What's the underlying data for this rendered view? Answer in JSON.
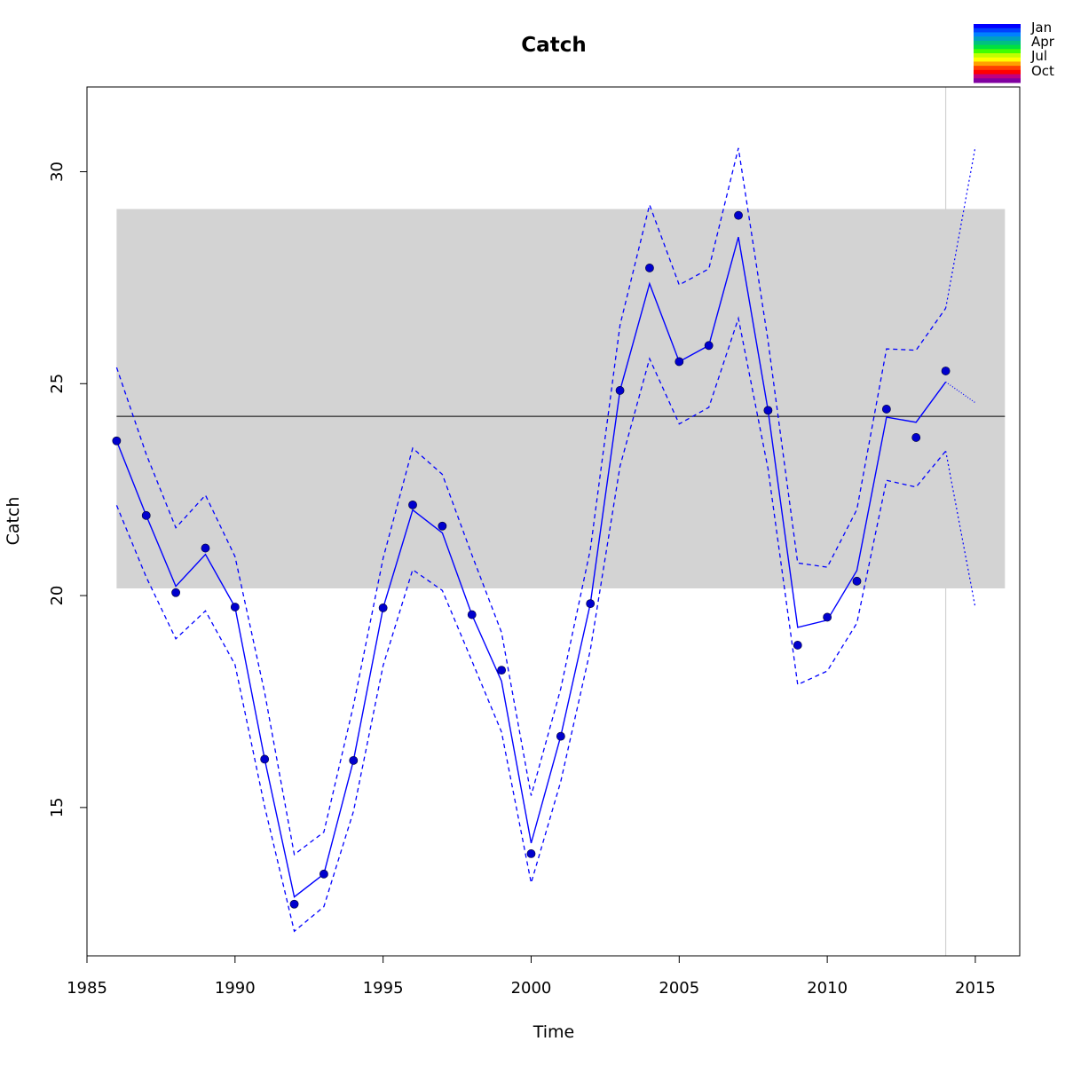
{
  "chart_data": {
    "type": "line",
    "title": "Catch",
    "xlabel": "Time",
    "ylabel": "Catch",
    "xlim": [
      1985,
      2016.5
    ],
    "ylim": [
      11.5,
      32
    ],
    "x_ticks": [
      1985,
      1990,
      1995,
      2000,
      2005,
      2010,
      2015
    ],
    "y_ticks": [
      15,
      20,
      25,
      30
    ],
    "x_tick_labels": [
      "1985",
      "1990",
      "1995",
      "2000",
      "2005",
      "2010",
      "2015"
    ],
    "y_tick_labels": [
      "15",
      "20",
      "25",
      "30"
    ],
    "grid": false,
    "mean_line": 24.23,
    "band": {
      "x_range": [
        1986,
        2016
      ],
      "y_range": [
        20.17,
        29.12
      ],
      "color": "#d3d3d3"
    },
    "vertical_marker_x": 2014,
    "observed": {
      "x": [
        1986,
        1987,
        1988,
        1989,
        1990,
        1991,
        1992,
        1993,
        1994,
        1995,
        1996,
        1997,
        1998,
        1999,
        2000,
        2001,
        2002,
        2003,
        2004,
        2005,
        2006,
        2007,
        2008,
        2009,
        2010,
        2011,
        2012,
        2013,
        2014
      ],
      "y": [
        23.65,
        21.89,
        20.07,
        21.12,
        19.73,
        16.14,
        12.72,
        13.43,
        16.11,
        19.71,
        22.14,
        21.64,
        19.55,
        18.24,
        13.91,
        16.68,
        19.81,
        24.84,
        27.73,
        25.52,
        25.9,
        28.97,
        24.37,
        18.83,
        19.49,
        20.34,
        24.4,
        23.73,
        25.3
      ]
    },
    "fitted": {
      "x": [
        1986,
        1987,
        1988,
        1989,
        1990,
        1991,
        1992,
        1993,
        1994,
        1995,
        1996,
        1997,
        1998,
        1999,
        2000,
        2001,
        2002,
        2003,
        2004,
        2005,
        2006,
        2007,
        2008,
        2009,
        2010,
        2011,
        2012,
        2013,
        2014
      ],
      "y": [
        23.65,
        21.89,
        20.22,
        20.97,
        19.73,
        16.14,
        12.89,
        13.43,
        16.11,
        19.71,
        22.02,
        21.48,
        19.55,
        17.98,
        14.16,
        16.68,
        19.81,
        24.84,
        27.36,
        25.52,
        25.9,
        28.46,
        24.37,
        19.25,
        19.42,
        20.59,
        24.21,
        24.09,
        25.04
      ]
    },
    "upper": {
      "x": [
        1986,
        1987,
        1988,
        1989,
        1990,
        1991,
        1992,
        1993,
        1994,
        1995,
        1996,
        1997,
        1998,
        1999,
        2000,
        2001,
        2002,
        2003,
        2004,
        2005,
        2006,
        2007,
        2008,
        2009,
        2010,
        2011,
        2012,
        2013,
        2014
      ],
      "y": [
        25.38,
        23.34,
        21.6,
        22.37,
        20.92,
        17.71,
        13.89,
        14.42,
        17.41,
        20.88,
        23.48,
        22.86,
        20.96,
        19.13,
        15.28,
        17.8,
        21.09,
        26.38,
        29.22,
        27.33,
        27.71,
        30.56,
        26.01,
        20.77,
        20.67,
        22.03,
        25.82,
        25.79,
        26.78
      ]
    },
    "lower": {
      "x": [
        1986,
        1987,
        1988,
        1989,
        1990,
        1991,
        1992,
        1993,
        1994,
        1995,
        1996,
        1997,
        1998,
        1999,
        2000,
        2001,
        2002,
        2003,
        2004,
        2005,
        2006,
        2007,
        2008,
        2009,
        2010,
        2011,
        2012,
        2013,
        2014
      ],
      "y": [
        22.13,
        20.44,
        18.98,
        19.64,
        18.37,
        15.02,
        12.08,
        12.66,
        14.91,
        18.35,
        20.61,
        20.12,
        18.46,
        16.78,
        13.22,
        15.61,
        18.72,
        23.05,
        25.59,
        24.05,
        24.44,
        26.54,
        22.99,
        17.9,
        18.22,
        19.35,
        22.72,
        22.56,
        23.41
      ]
    },
    "forecast": {
      "x": [
        2014,
        2015
      ],
      "mean": [
        25.04,
        24.55
      ],
      "upper": [
        26.78,
        30.59
      ],
      "lower": [
        23.41,
        19.71
      ]
    },
    "colors": {
      "line": "#0000ff",
      "points": "#0000cd",
      "band": "#d3d3d3",
      "mean_line": "#000000",
      "marker": "#d3d3d3"
    },
    "legend": {
      "position": "top-right",
      "labels": [
        "Jan",
        "Apr",
        "Jul",
        "Oct"
      ],
      "colors": [
        "#0000ff",
        "#0040ff",
        "#0080ff",
        "#00a0c0",
        "#00c080",
        "#00e040",
        "#40ff00",
        "#c0ff00",
        "#ffff00",
        "#ffa000",
        "#ff4000",
        "#ff0000",
        "#c00080",
        "#8000a0"
      ]
    }
  }
}
